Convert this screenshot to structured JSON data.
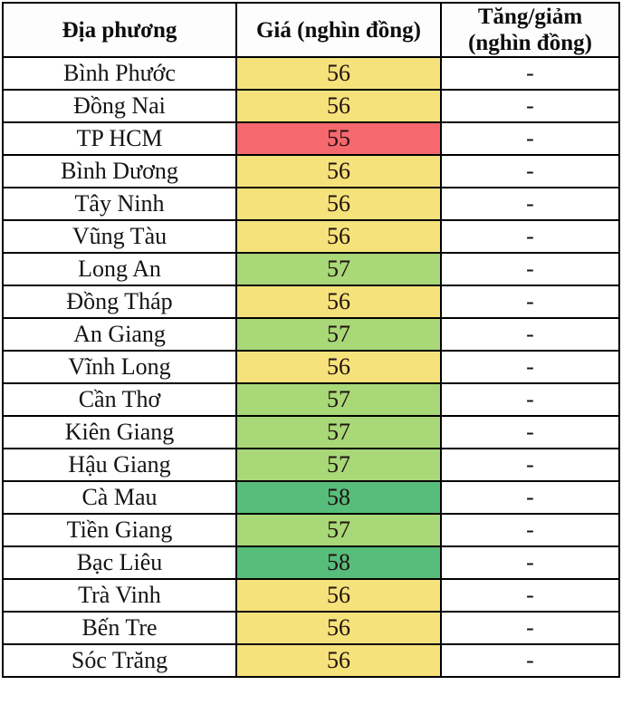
{
  "table": {
    "headers": [
      "Địa phương",
      "Giá (nghìn đồng)",
      "Tăng/giảm (nghìn đồng)"
    ],
    "rows": [
      {
        "province": "Bình Phước",
        "price": "56",
        "change": "-",
        "tone": "yellow"
      },
      {
        "province": "Đồng Nai",
        "price": "56",
        "change": "-",
        "tone": "yellow"
      },
      {
        "province": "TP HCM",
        "price": "55",
        "change": "-",
        "tone": "red"
      },
      {
        "province": "Bình Dương",
        "price": "56",
        "change": "-",
        "tone": "yellow"
      },
      {
        "province": "Tây Ninh",
        "price": "56",
        "change": "-",
        "tone": "yellow"
      },
      {
        "province": "Vũng Tàu",
        "price": "56",
        "change": "-",
        "tone": "yellow"
      },
      {
        "province": "Long An",
        "price": "57",
        "change": "-",
        "tone": "green"
      },
      {
        "province": "Đồng Tháp",
        "price": "56",
        "change": "-",
        "tone": "yellow"
      },
      {
        "province": "An Giang",
        "price": "57",
        "change": "-",
        "tone": "green"
      },
      {
        "province": "Vĩnh Long",
        "price": "56",
        "change": "-",
        "tone": "yellow"
      },
      {
        "province": "Cần Thơ",
        "price": "57",
        "change": "-",
        "tone": "green"
      },
      {
        "province": "Kiên Giang",
        "price": "57",
        "change": "-",
        "tone": "green"
      },
      {
        "province": "Hậu Giang",
        "price": "57",
        "change": "-",
        "tone": "green"
      },
      {
        "province": "Cà Mau",
        "price": "58",
        "change": "-",
        "tone": "dark_green"
      },
      {
        "province": "Tiền Giang",
        "price": "57",
        "change": "-",
        "tone": "green"
      },
      {
        "province": "Bạc Liêu",
        "price": "58",
        "change": "-",
        "tone": "dark_green"
      },
      {
        "province": "Trà Vinh",
        "price": "56",
        "change": "-",
        "tone": "yellow"
      },
      {
        "province": "Bến Tre",
        "price": "56",
        "change": "-",
        "tone": "yellow"
      },
      {
        "province": "Sóc Trăng",
        "price": "56",
        "change": "-",
        "tone": "yellow"
      }
    ]
  },
  "colors": {
    "yellow": "#F6E27B",
    "red": "#F5696E",
    "green": "#A8D878",
    "dark_green": "#57BD7B",
    "border": "#000000",
    "header_bg": "#FDFDFD",
    "row_bg": "#FFFFFF",
    "text": "#111111"
  },
  "chart_data": {
    "type": "table",
    "title": "",
    "columns": [
      "Địa phương",
      "Giá (nghìn đồng)",
      "Tăng/giảm (nghìn đồng)"
    ],
    "rows": [
      [
        "Bình Phước",
        56,
        "-"
      ],
      [
        "Đồng Nai",
        56,
        "-"
      ],
      [
        "TP HCM",
        55,
        "-"
      ],
      [
        "Bình Dương",
        56,
        "-"
      ],
      [
        "Tây Ninh",
        56,
        "-"
      ],
      [
        "Vũng Tàu",
        56,
        "-"
      ],
      [
        "Long An",
        57,
        "-"
      ],
      [
        "Đồng Tháp",
        56,
        "-"
      ],
      [
        "An Giang",
        57,
        "-"
      ],
      [
        "Vĩnh Long",
        56,
        "-"
      ],
      [
        "Cần Thơ",
        57,
        "-"
      ],
      [
        "Kiên Giang",
        57,
        "-"
      ],
      [
        "Hậu Giang",
        57,
        "-"
      ],
      [
        "Cà Mau",
        58,
        "-"
      ],
      [
        "Tiền Giang",
        57,
        "-"
      ],
      [
        "Bạc Liêu",
        58,
        "-"
      ],
      [
        "Trà Vinh",
        56,
        "-"
      ],
      [
        "Bến Tre",
        56,
        "-"
      ],
      [
        "Sóc Trăng",
        56,
        "-"
      ]
    ],
    "value_range": [
      55,
      58
    ],
    "color_coding": {
      "55": "red",
      "56": "yellow",
      "57": "light-green",
      "58": "dark-green"
    },
    "legend_position": "none",
    "grid": true
  }
}
